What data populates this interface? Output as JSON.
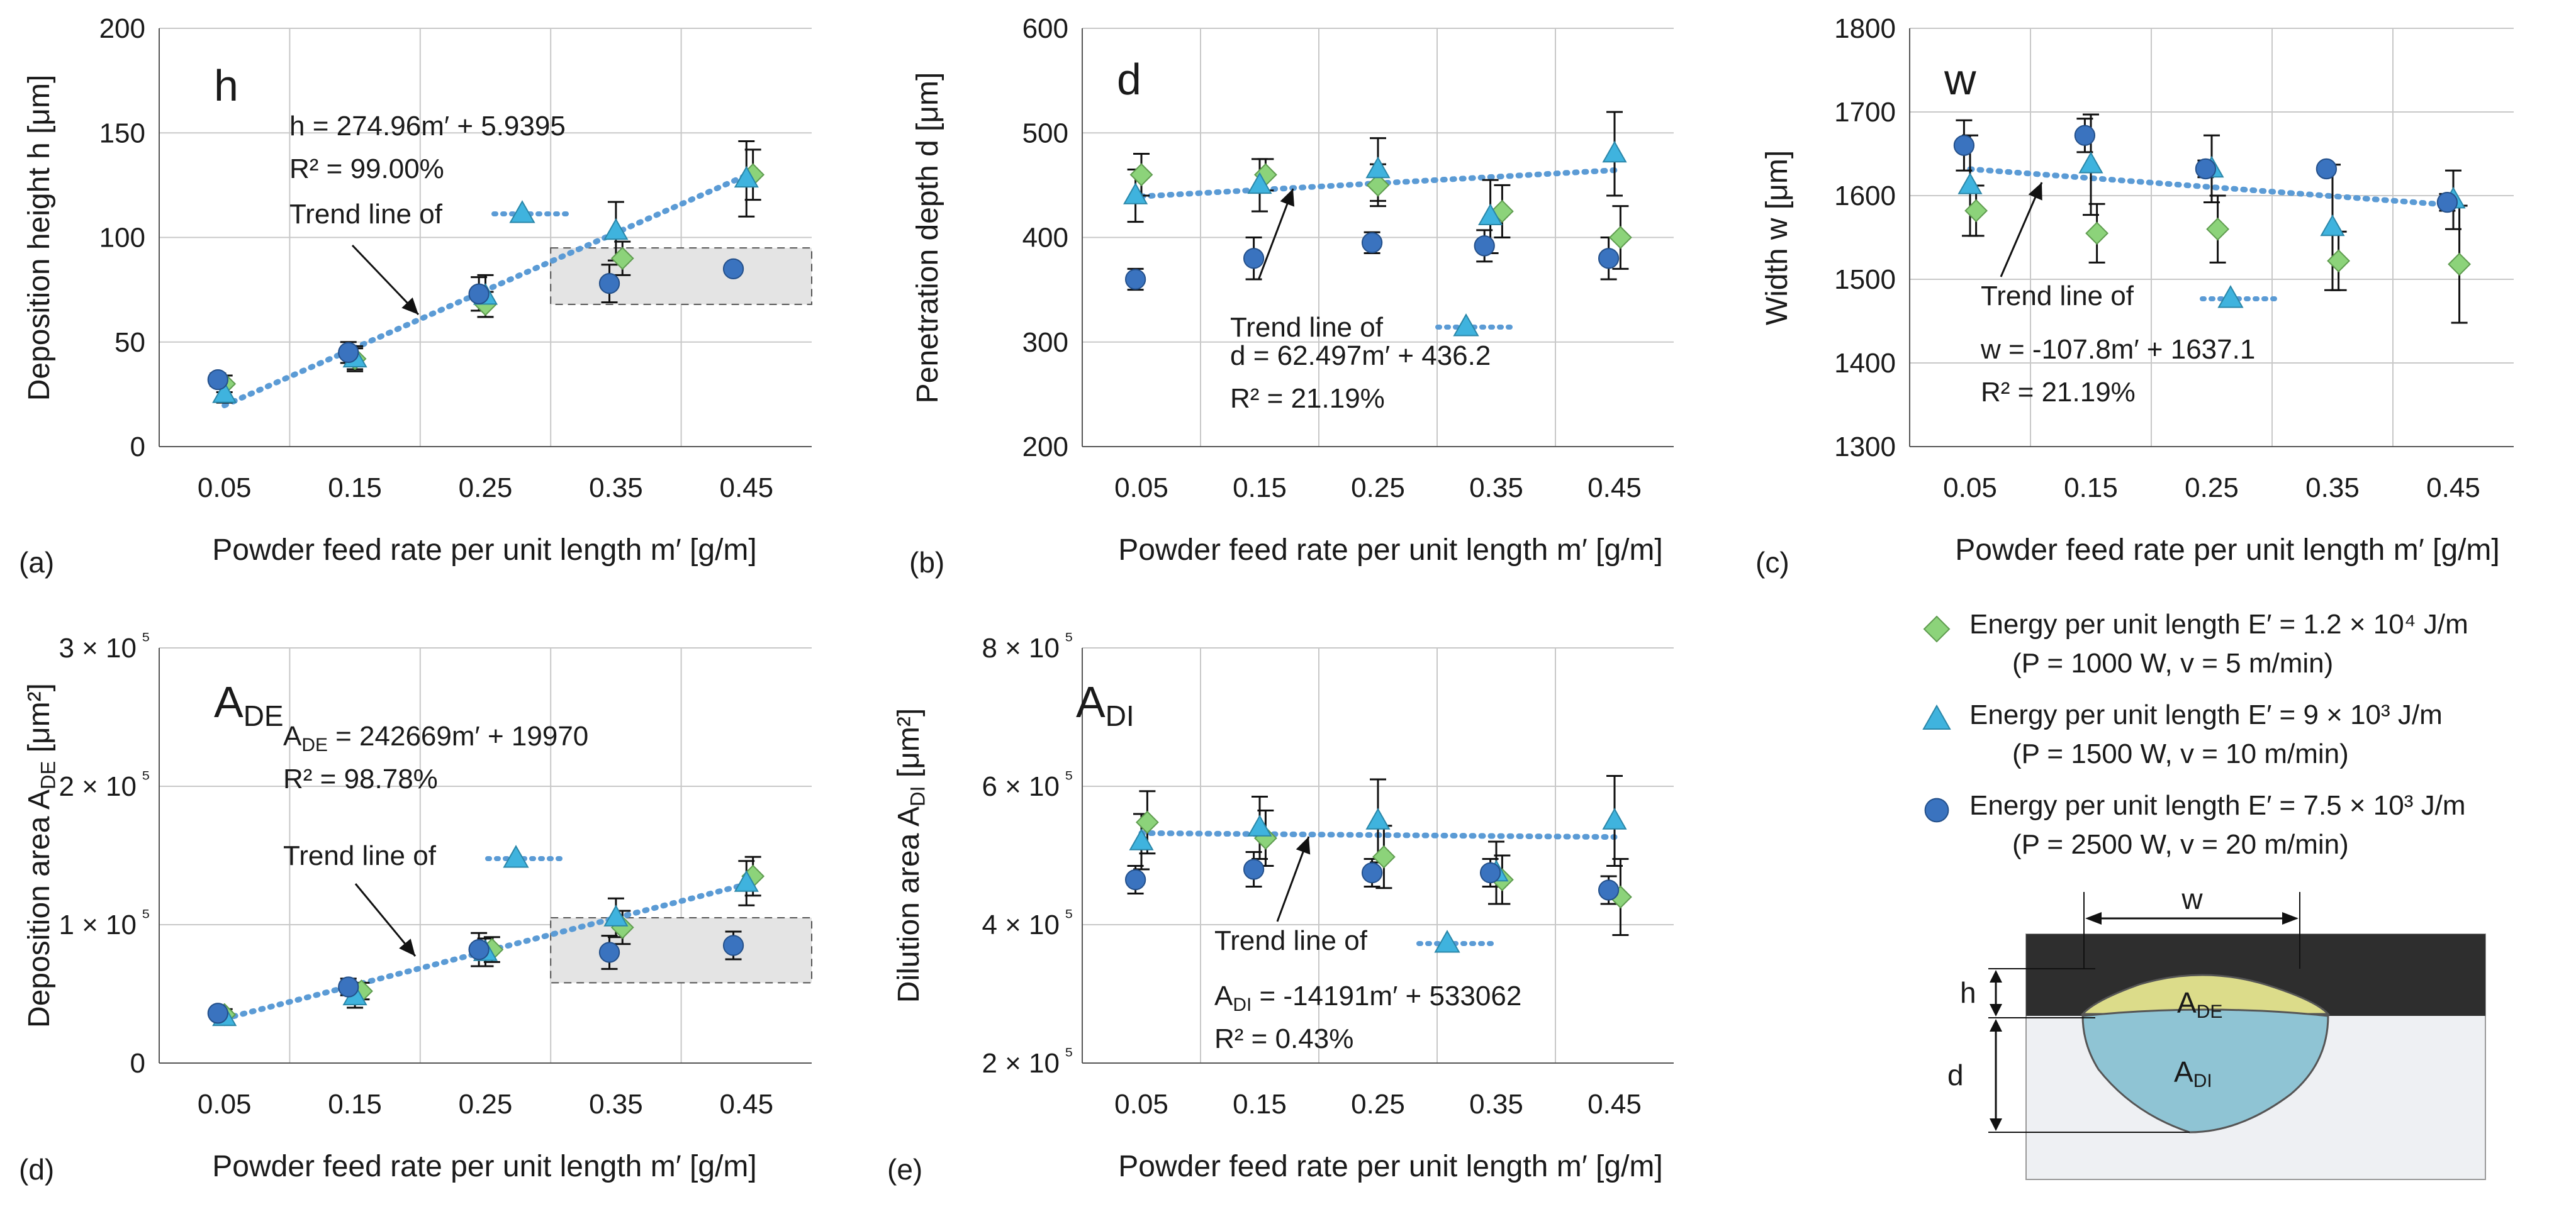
{
  "colors": {
    "green": "#8cd37a",
    "cyan": "#3fb3de",
    "blue": "#3a73bf",
    "trend": "#5b9bd5",
    "gray_box": "#e4e4e4",
    "grid": "#c8c8c8"
  },
  "legend": {
    "items": [
      {
        "marker": "diamond",
        "label": "Energy per unit length E′ = 1.2 × 10⁴ J/m",
        "sub": "(P = 1000  W, v = 5 m/min)"
      },
      {
        "marker": "triangle",
        "label": "Energy per unit length E′ = 9 × 10³ J/m",
        "sub": "(P = 1500  W, v = 10 m/min)"
      },
      {
        "marker": "circle",
        "label": "Energy per unit length E′ = 7.5 × 10³ J/m",
        "sub": "(P = 2500  W, v = 20 m/min)"
      }
    ]
  },
  "schematic": {
    "w_label": "w",
    "h_label": "h",
    "d_label": "d",
    "ade_label": "A",
    "ade_sub": "DE",
    "adi_label": "A",
    "adi_sub": "DI"
  },
  "chart_data": [
    {
      "id": "a",
      "type": "scatter",
      "panel_label": "(a)",
      "big_label": "h",
      "big_sub": "",
      "ylabel": "Deposition height h [μm]",
      "xlabel": "Powder feed rate per unit length m′ [g/m]",
      "xticks": [
        "0.05",
        "0.15",
        "0.25",
        "0.35",
        "0.45"
      ],
      "xlim": [
        0,
        0.5
      ],
      "ylim": [
        0,
        200
      ],
      "yticks": [
        0,
        50,
        100,
        150,
        200
      ],
      "ytick_labels": [
        "0",
        "50",
        "100",
        "150",
        "200"
      ],
      "series": [
        {
          "name": "E′ = 1.2 × 10⁴ J/m",
          "marker": "diamond",
          "x": [
            0.05,
            0.15,
            0.25,
            0.355,
            0.455
          ],
          "y": [
            30,
            42,
            68,
            90,
            130
          ],
          "err": [
            4,
            5,
            6,
            8,
            12
          ]
        },
        {
          "name": "E′ = 9 × 10³ J/m",
          "marker": "triangle",
          "x": [
            0.05,
            0.15,
            0.25,
            0.35,
            0.45
          ],
          "y": [
            25,
            42,
            72,
            103,
            128
          ],
          "err": [
            4,
            6,
            10,
            14,
            18
          ]
        },
        {
          "name": "E′ = 7.5 × 10³ J/m",
          "marker": "circle",
          "x": [
            0.045,
            0.145,
            0.245,
            0.345,
            0.44
          ],
          "y": [
            32,
            45,
            73,
            78,
            85
          ],
          "err": [
            3,
            5,
            8,
            9,
            2
          ]
        }
      ],
      "trend": {
        "x": [
          0.05,
          0.45
        ],
        "y": [
          19.7,
          129.7
        ]
      },
      "equation": [
        "h = 274.96m′ + 5.9395",
        "R² = 99.00%"
      ],
      "trend_text": "Trend line of",
      "highlight": {
        "x": [
          0.3,
          0.5
        ],
        "y": [
          68,
          95
        ]
      }
    },
    {
      "id": "b",
      "type": "scatter",
      "panel_label": "(b)",
      "big_label": "d",
      "big_sub": "",
      "ylabel": "Penetration depth d [μm]",
      "xlabel": "Powder feed rate per unit length m′ [g/m]",
      "xticks": [
        "0.05",
        "0.15",
        "0.25",
        "0.35",
        "0.45"
      ],
      "xlim": [
        0,
        0.5
      ],
      "ylim": [
        200,
        600
      ],
      "yticks": [
        200,
        300,
        400,
        500,
        600
      ],
      "ytick_labels": [
        "200",
        "300",
        "400",
        "500",
        "600"
      ],
      "series": [
        {
          "name": "E′ = 1.2 × 10⁴ J/m",
          "marker": "diamond",
          "x": [
            0.05,
            0.155,
            0.25,
            0.355,
            0.455
          ],
          "y": [
            460,
            460,
            450,
            425,
            400
          ],
          "err": [
            20,
            15,
            20,
            25,
            30
          ]
        },
        {
          "name": "E′ = 9 × 10³ J/m",
          "marker": "triangle",
          "x": [
            0.045,
            0.15,
            0.25,
            0.345,
            0.45
          ],
          "y": [
            440,
            450,
            465,
            420,
            480
          ],
          "err": [
            25,
            25,
            30,
            35,
            40
          ]
        },
        {
          "name": "E′ = 7.5 × 10³ J/m",
          "marker": "circle",
          "x": [
            0.045,
            0.145,
            0.245,
            0.34,
            0.445
          ],
          "y": [
            360,
            380,
            395,
            392,
            380
          ],
          "err": [
            10,
            20,
            10,
            15,
            20
          ]
        }
      ],
      "trend": {
        "x": [
          0.05,
          0.45
        ],
        "y": [
          439.3,
          464.3
        ]
      },
      "equation": [
        "d = 62.497m′ + 436.2",
        "R² = 21.19%"
      ],
      "trend_text": "Trend line of",
      "highlight": null
    },
    {
      "id": "c",
      "type": "scatter",
      "panel_label": "(c)",
      "big_label": "w",
      "big_sub": "",
      "ylabel": "Width w [μm]",
      "xlabel": "Powder feed rate per unit length m′ [g/m]",
      "xticks": [
        "0.05",
        "0.15",
        "0.25",
        "0.35",
        "0.45"
      ],
      "xlim": [
        0,
        0.5
      ],
      "ylim": [
        1300,
        1800
      ],
      "yticks": [
        1300,
        1400,
        1500,
        1600,
        1700,
        1800
      ],
      "ytick_labels": [
        "1300",
        "1400",
        "1500",
        "1600",
        "1700",
        "1800"
      ],
      "series": [
        {
          "name": "E′ = 1.2 × 10⁴ J/m",
          "marker": "diamond",
          "x": [
            0.055,
            0.155,
            0.255,
            0.355,
            0.455
          ],
          "y": [
            1582,
            1555,
            1560,
            1522,
            1518
          ],
          "err": [
            30,
            35,
            40,
            35,
            70
          ]
        },
        {
          "name": "E′ = 9 × 10³ J/m",
          "marker": "triangle",
          "x": [
            0.05,
            0.15,
            0.25,
            0.35,
            0.45
          ],
          "y": [
            1612,
            1637,
            1632,
            1562,
            1595
          ],
          "err": [
            60,
            60,
            40,
            75,
            35
          ]
        },
        {
          "name": "E′ = 7.5 × 10³ J/m",
          "marker": "circle",
          "x": [
            0.045,
            0.145,
            0.245,
            0.345,
            0.445
          ],
          "y": [
            1660,
            1672,
            1632,
            1632,
            1592
          ],
          "err": [
            30,
            20,
            10,
            5,
            10
          ]
        }
      ],
      "trend": {
        "x": [
          0.05,
          0.45
        ],
        "y": [
          1631.7,
          1588.6
        ]
      },
      "equation": [
        "w = -107.8m′ + 1637.1",
        "R² = 21.19%"
      ],
      "trend_text": "Trend line of",
      "highlight": null
    },
    {
      "id": "d",
      "type": "scatter",
      "panel_label": "(d)",
      "big_label": "A",
      "big_sub": "DE",
      "ylabel": "Deposition area A_DE [μm²]",
      "xlabel": "Powder feed rate per unit length m′ [g/m]",
      "xticks": [
        "0.05",
        "0.15",
        "0.25",
        "0.35",
        "0.45"
      ],
      "xlim": [
        0,
        0.5
      ],
      "ylim": [
        0,
        300000
      ],
      "yticks": [
        0,
        100000,
        200000,
        300000
      ],
      "ytick_labels": [
        "0",
        "1 × 10⁵",
        "2 × 10⁵",
        "3 × 10⁵"
      ],
      "series": [
        {
          "name": "E′ = 1.2 × 10⁴ J/m",
          "marker": "diamond",
          "x": [
            0.05,
            0.155,
            0.255,
            0.355,
            0.455
          ],
          "y": [
            35000,
            52000,
            82000,
            98000,
            135000
          ],
          "err": [
            4000,
            6000,
            9000,
            12000,
            14000
          ]
        },
        {
          "name": "E′ = 9 × 10³ J/m",
          "marker": "triangle",
          "x": [
            0.05,
            0.15,
            0.25,
            0.35,
            0.45
          ],
          "y": [
            33000,
            48000,
            80000,
            105000,
            130000
          ],
          "err": [
            4000,
            8000,
            10000,
            14000,
            16000
          ]
        },
        {
          "name": "E′ = 7.5 × 10³ J/m",
          "marker": "circle",
          "x": [
            0.045,
            0.145,
            0.245,
            0.345,
            0.44
          ],
          "y": [
            36000,
            55000,
            82000,
            80000,
            85000
          ],
          "err": [
            4000,
            6000,
            12000,
            12000,
            10000
          ]
        }
      ],
      "trend": {
        "x": [
          0.05,
          0.45
        ],
        "y": [
          32103,
          129171
        ]
      },
      "equation": [
        "A_DE = 242669m′ + 19970",
        "R² = 98.78%"
      ],
      "trend_text": "Trend line of",
      "highlight": {
        "x": [
          0.3,
          0.5
        ],
        "y": [
          58000,
          105000
        ]
      }
    },
    {
      "id": "e",
      "type": "scatter",
      "panel_label": "(e)",
      "big_label": "A",
      "big_sub": "DI",
      "ylabel": "Dilution area A_DI [μm²]",
      "xlabel": "Powder feed rate per unit length m′ [g/m]",
      "xticks": [
        "0.05",
        "0.15",
        "0.25",
        "0.35",
        "0.45"
      ],
      "xlim": [
        0,
        0.5
      ],
      "ylim": [
        200000,
        800000
      ],
      "yticks": [
        200000,
        400000,
        600000,
        800000
      ],
      "ytick_labels": [
        "2 × 10⁵",
        "4 × 10⁵",
        "6 × 10⁵",
        "8 × 10⁵"
      ],
      "series": [
        {
          "name": "E′ = 1.2 × 10⁴ J/m",
          "marker": "diamond",
          "x": [
            0.055,
            0.155,
            0.255,
            0.355,
            0.455
          ],
          "y": [
            548000,
            525000,
            498000,
            465000,
            440000
          ],
          "err": [
            45000,
            40000,
            45000,
            35000,
            55000
          ]
        },
        {
          "name": "E′ = 9 × 10³ J/m",
          "marker": "triangle",
          "x": [
            0.05,
            0.15,
            0.25,
            0.35,
            0.45
          ],
          "y": [
            520000,
            540000,
            550000,
            475000,
            550000
          ],
          "err": [
            40000,
            45000,
            60000,
            45000,
            65000
          ]
        },
        {
          "name": "E′ = 7.5 × 10³ J/m",
          "marker": "circle",
          "x": [
            0.045,
            0.145,
            0.245,
            0.345,
            0.445
          ],
          "y": [
            465000,
            480000,
            475000,
            475000,
            450000
          ],
          "err": [
            20000,
            25000,
            20000,
            20000,
            20000
          ]
        }
      ],
      "trend": {
        "x": [
          0.05,
          0.45
        ],
        "y": [
          532352,
          526676
        ]
      },
      "equation": [
        "A_DI = -14191m′ + 533062",
        "R² = 0.43%"
      ],
      "trend_text": "Trend line of",
      "highlight": null
    }
  ]
}
